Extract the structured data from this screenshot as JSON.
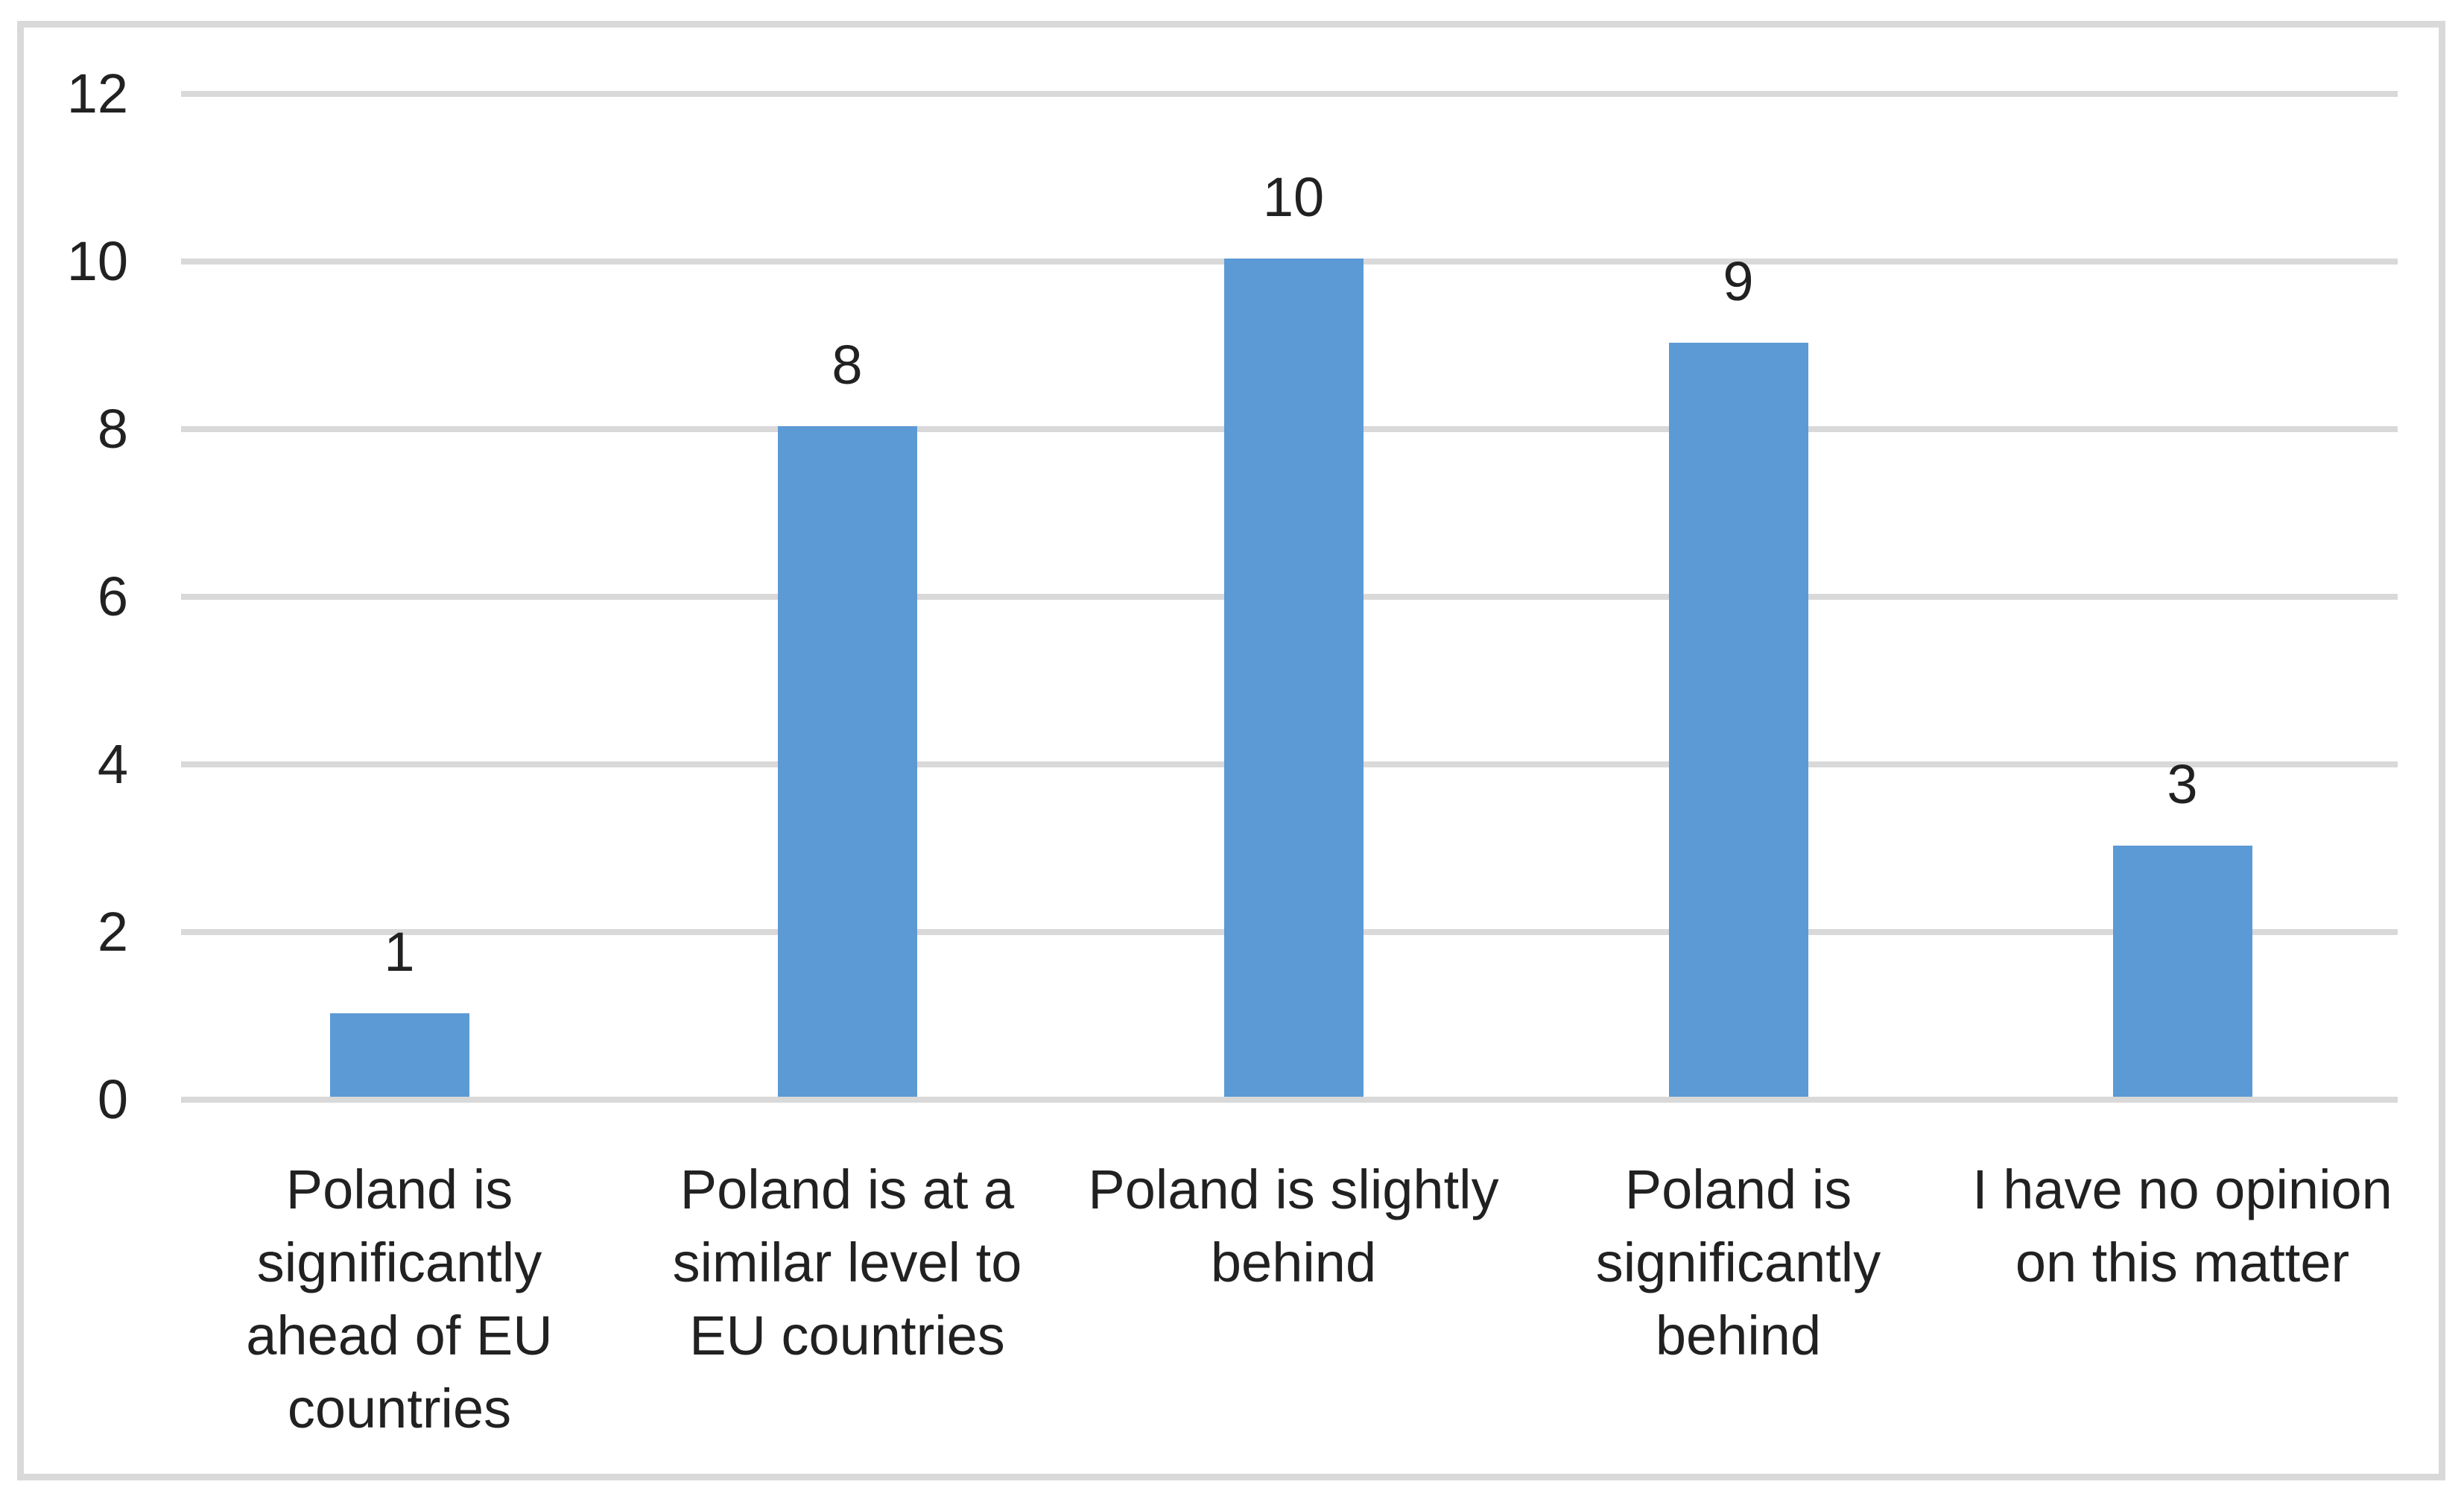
{
  "chart_data": {
    "type": "bar",
    "title": "",
    "xlabel": "",
    "ylabel": "",
    "categories": [
      "Poland is significantly ahead of EU countries",
      "Poland is at a similar level to EU countries",
      "Poland is slightly behind",
      "Poland is significantly behind",
      "I have no opinion on this matter"
    ],
    "category_lines": [
      [
        "Poland is",
        "significantly",
        "ahead of EU",
        "countries"
      ],
      [
        "Poland is at a",
        "similar level to",
        "EU countries"
      ],
      [
        "Poland is slightly",
        "behind"
      ],
      [
        "Poland is",
        "significantly",
        "behind"
      ],
      [
        "I have no opinion",
        "on this matter"
      ]
    ],
    "values": [
      1,
      8,
      10,
      9,
      3
    ],
    "data_labels": [
      "1",
      "8",
      "10",
      "9",
      "3"
    ],
    "yticks": [
      "0",
      "2",
      "4",
      "6",
      "8",
      "10",
      "12"
    ],
    "ytick_values": [
      0,
      2,
      4,
      6,
      8,
      10,
      12
    ],
    "ylim": [
      0,
      12
    ],
    "grid": true,
    "legend": false,
    "colors": {
      "bar": "#5B9AD5",
      "gridline": "#D9D9D9",
      "frame_border": "#D9D9D9",
      "text": "#212121",
      "background": "#FFFFFF"
    }
  }
}
